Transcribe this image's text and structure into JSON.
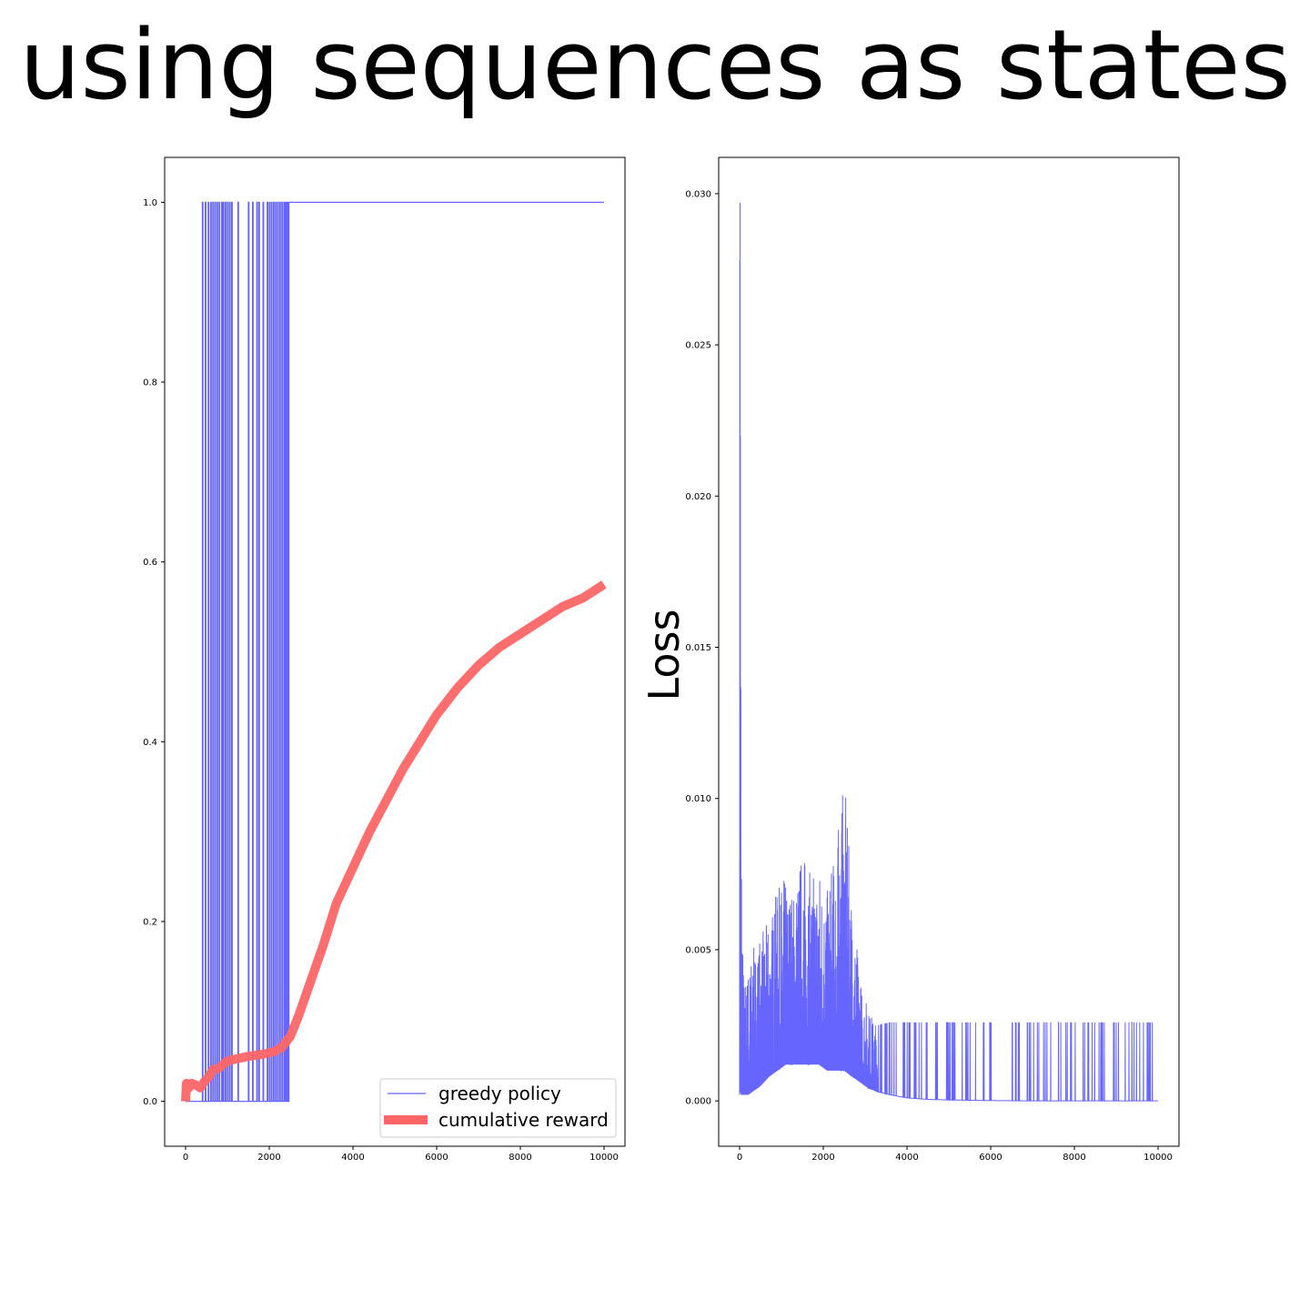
{
  "title": "using sequences as states",
  "colors": {
    "policy": "#6666ff",
    "reward": "#ff6666"
  },
  "chart_data": [
    {
      "type": "line",
      "title": "",
      "xlabel": "",
      "ylabel": "",
      "xlim": [
        -500,
        10500
      ],
      "ylim": [
        -0.05,
        1.05
      ],
      "xticks": [
        0,
        2000,
        4000,
        6000,
        8000,
        10000
      ],
      "xtick_labels": [
        "0",
        "2000",
        "4000",
        "6000",
        "8000",
        "10000"
      ],
      "yticks": [
        0.0,
        0.2,
        0.4,
        0.6,
        0.8,
        1.0
      ],
      "ytick_labels": [
        "0.0",
        "0.2",
        "0.4",
        "0.6",
        "0.8",
        "1.0"
      ],
      "legend": {
        "position": "lower right",
        "entries": [
          "greedy policy",
          "cumulative reward"
        ]
      },
      "series": [
        {
          "name": "greedy policy",
          "color": "#6666ff",
          "style": "step",
          "final_value": 1.0,
          "spikes_to_one_at": [
            400,
            470,
            540,
            600,
            650,
            700,
            750,
            800,
            860,
            900,
            950,
            1000,
            1050,
            1100,
            1250,
            1500,
            1600,
            1700,
            1750,
            1850,
            1950,
            2000,
            2050,
            2100,
            2150,
            2200,
            2250,
            2300,
            2350,
            2380,
            2410,
            2440,
            2470
          ],
          "stays_one_from": 2470,
          "x_end": 10000
        },
        {
          "name": "cumulative reward",
          "color": "#ff6666",
          "x": [
            0,
            20,
            80,
            150,
            250,
            350,
            450,
            550,
            650,
            800,
            1000,
            1200,
            1500,
            1800,
            2100,
            2300,
            2500,
            2700,
            3000,
            3300,
            3600,
            4000,
            4400,
            4800,
            5200,
            5600,
            6000,
            6500,
            7000,
            7500,
            8000,
            8500,
            9000,
            9500,
            10000
          ],
          "y": [
            0.0,
            0.02,
            0.015,
            0.02,
            0.018,
            0.015,
            0.022,
            0.027,
            0.035,
            0.037,
            0.045,
            0.047,
            0.05,
            0.052,
            0.055,
            0.06,
            0.072,
            0.095,
            0.135,
            0.175,
            0.22,
            0.26,
            0.3,
            0.335,
            0.37,
            0.4,
            0.43,
            0.46,
            0.485,
            0.505,
            0.52,
            0.535,
            0.55,
            0.56,
            0.575
          ]
        }
      ]
    },
    {
      "type": "line",
      "title": "",
      "xlabel": "",
      "ylabel": "Loss",
      "xlim": [
        -500,
        10500
      ],
      "ylim": [
        -0.0015,
        0.0312
      ],
      "xticks": [
        0,
        2000,
        4000,
        6000,
        8000,
        10000
      ],
      "xtick_labels": [
        "0",
        "2000",
        "4000",
        "6000",
        "8000",
        "10000"
      ],
      "yticks": [
        0.0,
        0.005,
        0.01,
        0.015,
        0.02,
        0.025,
        0.03
      ],
      "ytick_labels": [
        "0.000",
        "0.005",
        "0.010",
        "0.015",
        "0.020",
        "0.025",
        "0.030"
      ],
      "series": [
        {
          "color": "#6666ff",
          "x": [
            0,
            10,
            20,
            30,
            40,
            60,
            80,
            120,
            200,
            300,
            500,
            700,
            900,
            1100,
            1300,
            1500,
            1700,
            1900,
            2100,
            2300,
            2500,
            2700,
            2900,
            3100,
            3300,
            3600,
            4000,
            4500,
            5000,
            6000,
            7000,
            8000,
            9000,
            10000
          ],
          "y": [
            0.011,
            0.0297,
            0.02,
            0.022,
            0.011,
            0.008,
            0.005,
            0.004,
            0.0045,
            0.005,
            0.0055,
            0.006,
            0.007,
            0.0075,
            0.007,
            0.0085,
            0.0075,
            0.008,
            0.007,
            0.0085,
            0.0108,
            0.0065,
            0.004,
            0.003,
            0.0025,
            0.0026,
            0.0026,
            0.0026,
            0.0026,
            0.0026,
            0.0026,
            0.0026,
            0.0026,
            0.0026
          ],
          "baseline": [
            0.0002,
            0.0003,
            0.0005,
            0.0003,
            0.0002,
            0.0002,
            0.0002,
            0.0002,
            0.0002,
            0.0003,
            0.0005,
            0.0008,
            0.001,
            0.0012,
            0.0012,
            0.0012,
            0.0012,
            0.0012,
            0.001,
            0.001,
            0.001,
            0.0008,
            0.0006,
            0.0004,
            0.0003,
            0.0002,
            0.0001,
            5e-05,
            3e-05,
            1e-05,
            0.0,
            0.0,
            0.0,
            0.0
          ]
        }
      ]
    }
  ]
}
